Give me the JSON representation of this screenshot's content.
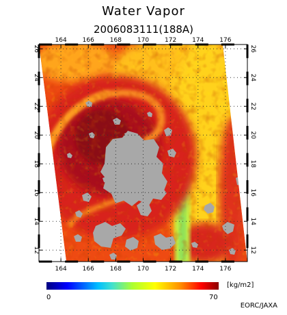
{
  "title": "Water Vapor",
  "subtitle": "2006083111(188A)",
  "x_ticks": [
    "164",
    "166",
    "168",
    "170",
    "172",
    "174",
    "176"
  ],
  "y_ticks": [
    "12",
    "14",
    "16",
    "18",
    "20",
    "22",
    "24",
    "26"
  ],
  "lon_values": [
    164,
    166,
    168,
    170,
    172,
    174,
    176
  ],
  "lat_values": [
    12,
    14,
    16,
    18,
    20,
    22,
    24,
    26
  ],
  "lon_range": [
    162.4,
    177.6
  ],
  "lat_range": [
    11.2,
    26.3
  ],
  "colorbar": {
    "min": "0",
    "max": "70",
    "unit": "[kg/m2]"
  },
  "credit": "EORC/JAXA",
  "colors": {
    "no_data": "#a8a8a8",
    "gap": "#ffffff"
  }
}
